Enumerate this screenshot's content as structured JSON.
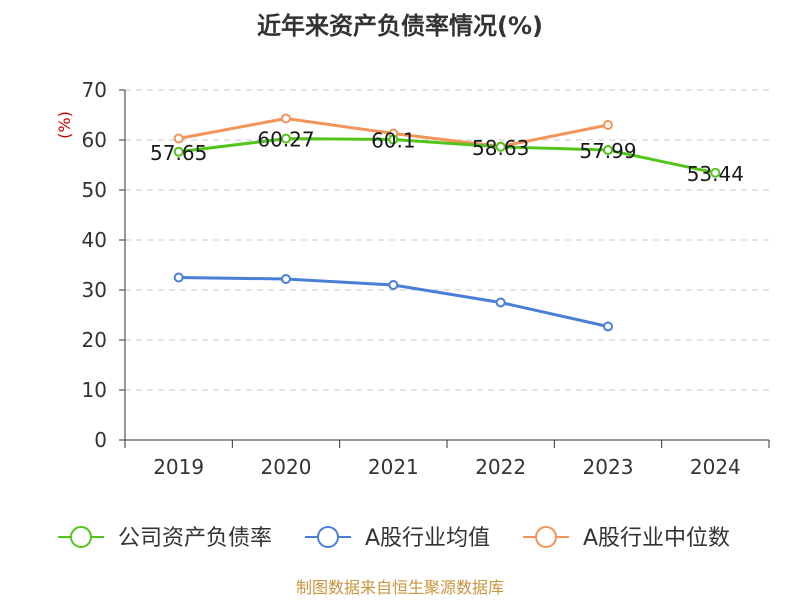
{
  "chart_data": {
    "type": "line",
    "title": "近年来资产负债率情况(%)",
    "ylabel": "(%)",
    "xlabel": "",
    "ylim": [
      0,
      70
    ],
    "yticks": [
      0,
      10,
      20,
      30,
      40,
      50,
      60,
      70
    ],
    "categories": [
      "2019",
      "2020",
      "2021",
      "2022",
      "2023",
      "2024"
    ],
    "grid": true,
    "legend_position": "bottom",
    "series": [
      {
        "name": "公司资产负债率",
        "color": "#52c41a",
        "values": [
          57.65,
          60.27,
          60.1,
          58.63,
          57.99,
          53.44
        ],
        "labels": [
          "57.65",
          "60.27",
          "60.1",
          "58.63",
          "57.99",
          "53.44"
        ]
      },
      {
        "name": "A股行业均值",
        "color": "#4a7fd8",
        "values": [
          32.5,
          32.2,
          31.0,
          27.5,
          22.7,
          null
        ]
      },
      {
        "name": "A股行业中位数",
        "color": "#f4935a",
        "values": [
          60.3,
          64.3,
          61.3,
          58.7,
          63.0,
          null
        ]
      }
    ]
  },
  "source": {
    "text": "制图数据来自恒生聚源数据库",
    "color": "#c8963e"
  }
}
